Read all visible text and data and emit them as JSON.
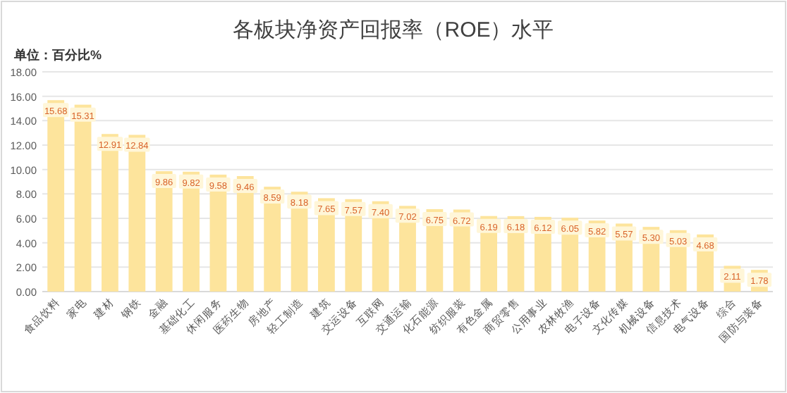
{
  "chart_data": {
    "type": "bar",
    "title": "各板块净资产回报率（ROE）水平",
    "annotations": [
      "单位：百分比%"
    ],
    "categories": [
      "食品饮料",
      "家电",
      "建材",
      "钢铁",
      "金融",
      "基础化工",
      "休闲服务",
      "医药生物",
      "房地产",
      "轻工制造",
      "建筑",
      "交运设备",
      "互联网",
      "交通运输",
      "化石能源",
      "纺织服装",
      "有色金属",
      "商贸零售",
      "公用事业",
      "农林牧渔",
      "电子设备",
      "文化传媒",
      "机械设备",
      "信息技术",
      "电气设备",
      "综合",
      "国防与装备"
    ],
    "values": [
      15.68,
      15.31,
      12.91,
      12.84,
      9.86,
      9.82,
      9.58,
      9.46,
      8.59,
      8.18,
      7.65,
      7.57,
      7.4,
      7.02,
      6.75,
      6.72,
      6.19,
      6.18,
      6.12,
      6.05,
      5.82,
      5.57,
      5.3,
      5.03,
      4.68,
      2.11,
      1.78
    ],
    "value_labels": [
      "15.68",
      "15.31",
      "12.91",
      "12.84",
      "9.86",
      "9.82",
      "9.58",
      "9.46",
      "8.59",
      "8.18",
      "7.65",
      "7.57",
      "7.40",
      "7.02",
      "6.75",
      "6.72",
      "6.19",
      "6.18",
      "6.12",
      "6.05",
      "5.82",
      "5.57",
      "5.30",
      "5.03",
      "4.68",
      "2.11",
      "1.78"
    ],
    "color": "#fde49c",
    "ylim": [
      0,
      18
    ],
    "yticks": [
      {
        "value": 0,
        "label": "0.00"
      },
      {
        "value": 2,
        "label": "2.00"
      },
      {
        "value": 4,
        "label": "4.00"
      },
      {
        "value": 6,
        "label": "6.00"
      },
      {
        "value": 8,
        "label": "8.00"
      },
      {
        "value": 10,
        "label": "10.00"
      },
      {
        "value": 12,
        "label": "12.00"
      },
      {
        "value": 14,
        "label": "14.00"
      },
      {
        "value": 16,
        "label": "16.00"
      },
      {
        "value": 18,
        "label": "18.00"
      }
    ],
    "grid": "y"
  }
}
